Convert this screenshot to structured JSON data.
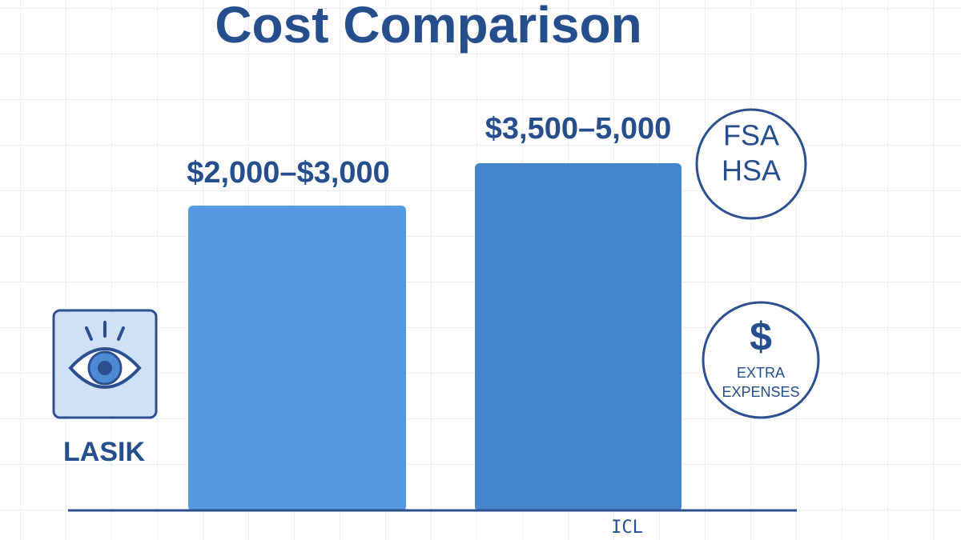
{
  "title": "Cost Comparison",
  "bars": [
    {
      "label": "LASIK",
      "cost": "$2,000–$3,000"
    },
    {
      "label": "ICL",
      "cost": "$3,500–5,000"
    }
  ],
  "badges": {
    "accounts": [
      "FSA",
      "HSA"
    ],
    "extra": {
      "symbol": "$",
      "lines": [
        "EXTRA",
        "EXPENSES"
      ]
    }
  }
}
